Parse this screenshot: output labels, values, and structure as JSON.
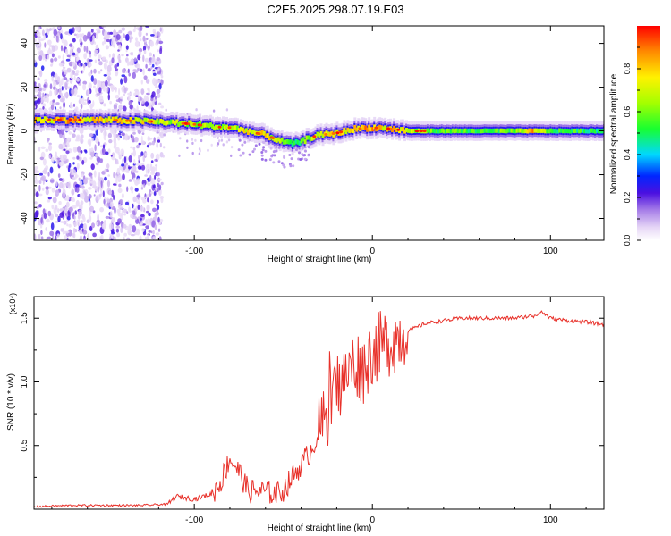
{
  "title": "C2E5.2025.298.07.19.E03",
  "chart_data": [
    {
      "type": "heatmap",
      "name": "spectrogram",
      "xlabel": "Height of straight line (km)",
      "ylabel": "Frequency (Hz)",
      "xlim": [
        -190,
        130
      ],
      "ylim": [
        -50,
        48
      ],
      "xticks": [
        -100,
        0,
        100
      ],
      "xtick_labels": [
        "-100",
        "0",
        "100"
      ],
      "yticks": [
        40,
        20,
        0,
        -20,
        -40
      ],
      "ytick_labels": [
        "40",
        "20",
        "0",
        "-20",
        "-40"
      ],
      "colorbar": {
        "label": "Normalized spectral amplitude",
        "range": [
          0,
          1
        ],
        "ticks": [
          0,
          0.2,
          0.4,
          0.6,
          0.8
        ],
        "tick_labels": [
          "0.0",
          "0.2",
          "0.4",
          "0.6",
          "0.8"
        ]
      },
      "ridge": {
        "x": [
          -185,
          -170,
          -150,
          -130,
          -115,
          -100,
          -90,
          -80,
          -70,
          -60,
          -50,
          -45,
          -40,
          -35,
          -30,
          -20,
          -10,
          0,
          10,
          20,
          40,
          60,
          80,
          90,
          100,
          130
        ],
        "freq": [
          5,
          5,
          5,
          4.5,
          4,
          3,
          2,
          1.5,
          0,
          -2,
          -5,
          -6,
          -5,
          -3,
          -2,
          -1,
          1,
          1.5,
          1,
          0,
          0,
          0,
          0,
          0,
          0,
          0
        ],
        "amplitude": [
          0.85,
          0.9,
          0.85,
          0.8,
          0.75,
          0.7,
          0.7,
          0.75,
          0.8,
          0.8,
          0.65,
          0.55,
          0.6,
          0.7,
          0.8,
          0.85,
          0.85,
          0.9,
          0.85,
          0.75,
          0.6,
          0.6,
          0.65,
          0.9,
          0.6,
          0.55
        ]
      }
    },
    {
      "type": "line",
      "name": "snr",
      "xlabel": "Height of straight line (km)",
      "ylabel": "SNR (10 * v/v)",
      "scale_label": "(x10⁴)",
      "xlim": [
        -190,
        130
      ],
      "ylim": [
        0,
        1.67
      ],
      "xticks": [
        -100,
        0,
        100
      ],
      "xtick_labels": [
        "-100",
        "0",
        "100"
      ],
      "yticks": [
        0.5,
        1.0,
        1.5
      ],
      "ytick_labels": [
        "0.5",
        "1.0",
        "1.5"
      ],
      "color": "#e8312a",
      "x": [
        -190,
        -170,
        -150,
        -130,
        -115,
        -110,
        -100,
        -90,
        -85,
        -80,
        -75,
        -70,
        -65,
        -60,
        -55,
        -50,
        -45,
        -40,
        -35,
        -30,
        -25,
        -20,
        -15,
        -10,
        -5,
        0,
        10,
        20,
        30,
        40,
        50,
        60,
        70,
        80,
        90,
        95,
        100,
        110,
        120,
        130
      ],
      "y": [
        0.02,
        0.03,
        0.03,
        0.03,
        0.04,
        0.1,
        0.08,
        0.12,
        0.22,
        0.4,
        0.3,
        0.15,
        0.14,
        0.14,
        0.12,
        0.15,
        0.25,
        0.35,
        0.45,
        0.6,
        0.75,
        0.95,
        1.05,
        1.15,
        1.1,
        1.25,
        1.32,
        1.4,
        1.46,
        1.48,
        1.5,
        1.5,
        1.5,
        1.5,
        1.52,
        1.55,
        1.5,
        1.48,
        1.47,
        1.45
      ]
    }
  ],
  "colors": {
    "line": "#e8312a",
    "axis": "#000000",
    "background": "#ffffff"
  }
}
